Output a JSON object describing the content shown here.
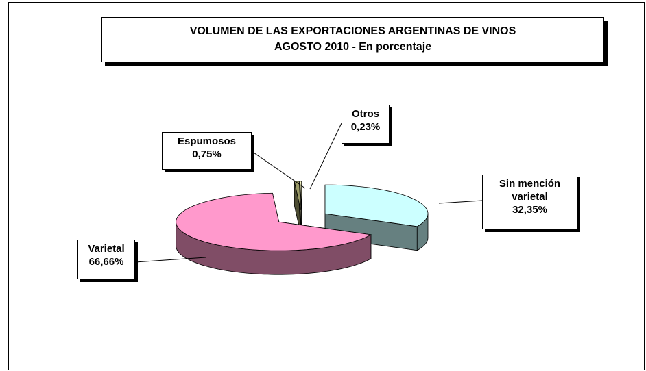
{
  "chart_data": {
    "type": "pie",
    "title": "VOLUMEN DE LAS EXPORTACIONES ARGENTINAS  DE VINOS",
    "subtitle": "AGOSTO 2010 - En porcentaje",
    "categories": [
      "Sin mención varietal",
      "Varietal",
      "Espumosos",
      "Otros"
    ],
    "values": [
      32.35,
      66.66,
      0.75,
      0.23
    ],
    "value_labels": [
      "32,35%",
      "66,66%",
      "0,75%",
      "0,23%"
    ],
    "colors": [
      "#ccffff",
      "#ff99cc",
      "#999966",
      "#ffffcc"
    ]
  }
}
